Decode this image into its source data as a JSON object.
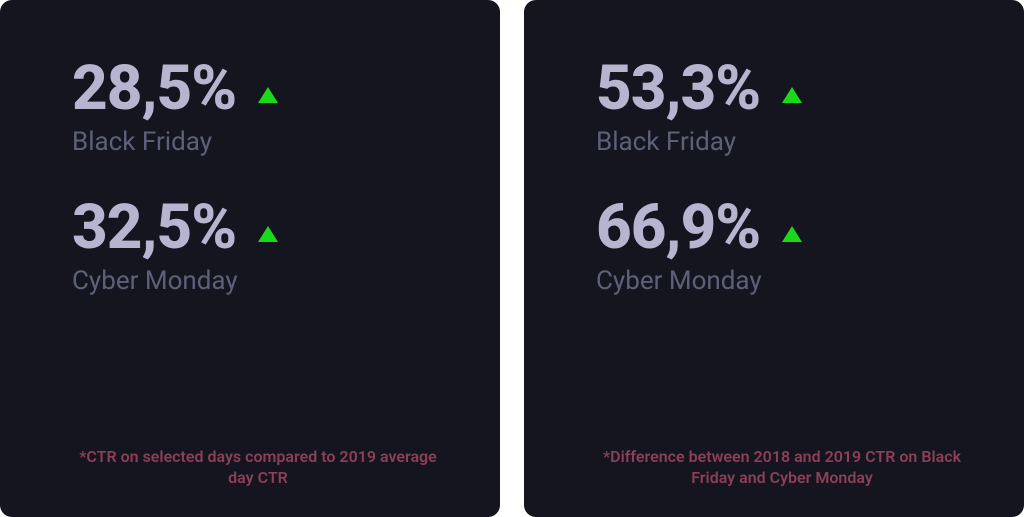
{
  "background_color": "#ffffff",
  "card_background": "#14151f",
  "value_color": "#b6b4cf",
  "label_color": "#5d6178",
  "footnote_color": "#8c3f56",
  "arrow_color": "#1ad91a",
  "value_fontsize": 62,
  "value_fontweight": 800,
  "label_fontsize": 26,
  "footnote_fontsize": 16,
  "cards": [
    {
      "stats": [
        {
          "value": "28,5%",
          "label": "Black Friday",
          "direction": "up"
        },
        {
          "value": "32,5%",
          "label": "Cyber Monday",
          "direction": "up"
        }
      ],
      "footnote": "*CTR on selected days compared to 2019 average day CTR"
    },
    {
      "stats": [
        {
          "value": "53,3%",
          "label": "Black Friday",
          "direction": "up"
        },
        {
          "value": "66,9%",
          "label": "Cyber Monday",
          "direction": "up"
        }
      ],
      "footnote": "*Difference between 2018 and 2019 CTR on Black Friday and Cyber Monday"
    }
  ]
}
